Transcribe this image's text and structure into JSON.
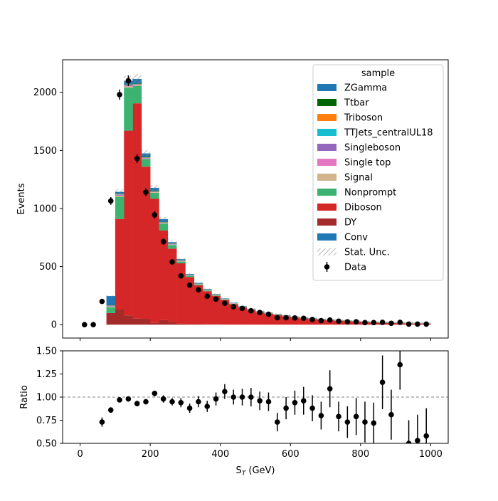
{
  "chart_data": [
    {
      "type": "bar",
      "stacked": true,
      "ylabel": "Events",
      "xlim": [
        -50,
        1050
      ],
      "ylim": [
        -115,
        2280
      ],
      "yticks": [
        0,
        500,
        1000,
        1500,
        2000
      ],
      "bin_edges": [
        0,
        25,
        50,
        75,
        100,
        125,
        150,
        175,
        200,
        225,
        250,
        275,
        300,
        325,
        350,
        375,
        400,
        425,
        450,
        475,
        500,
        525,
        550,
        575,
        600,
        625,
        650,
        675,
        700,
        725,
        750,
        775,
        800,
        825,
        850,
        875,
        900,
        925,
        950,
        975,
        1000
      ],
      "legend": {
        "title": "sample",
        "position": "top-right"
      },
      "series": [
        {
          "name": "DY",
          "color": "#a52a2a",
          "values": [
            0,
            0,
            0,
            100,
            130,
            80,
            55,
            50,
            15,
            40,
            25,
            8,
            5,
            4,
            3,
            3,
            2,
            2,
            2,
            2,
            1,
            1,
            1,
            1,
            1,
            1,
            1,
            1,
            1,
            1,
            1,
            1,
            1,
            1,
            1,
            1,
            1,
            1,
            1,
            1
          ]
        },
        {
          "name": "Diboson",
          "color": "#d62728",
          "values": [
            0,
            0,
            0,
            0,
            780,
            1590,
            1850,
            1310,
            1070,
            770,
            630,
            520,
            405,
            335,
            285,
            245,
            210,
            175,
            148,
            125,
            105,
            93,
            82,
            72,
            60,
            54,
            48,
            42,
            36,
            32,
            28,
            24,
            20,
            17,
            15,
            13,
            11,
            9,
            7,
            6
          ]
        },
        {
          "name": "Nonprompt",
          "color": "#3cb371",
          "values": [
            0,
            0,
            0,
            50,
            190,
            370,
            150,
            65,
            50,
            60,
            30,
            15,
            10,
            8,
            6,
            5,
            4,
            3,
            3,
            2,
            2,
            2,
            2,
            1,
            1,
            1,
            1,
            1,
            1,
            1,
            1,
            1,
            1,
            1,
            1,
            1,
            1,
            1,
            1,
            1
          ]
        },
        {
          "name": "Signal",
          "color": "#d2b48c",
          "values": [
            0,
            0,
            0,
            5,
            10,
            10,
            5,
            5,
            5,
            3,
            3,
            3,
            2,
            2,
            2,
            2,
            2,
            1,
            1,
            1,
            1,
            1,
            1,
            1,
            1,
            1,
            1,
            1,
            1,
            1,
            1,
            1,
            1,
            1,
            1,
            1,
            1,
            1,
            1,
            1
          ]
        },
        {
          "name": "Single top",
          "color": "#e377c2",
          "values": [
            0,
            0,
            0,
            2,
            3,
            3,
            3,
            2,
            2,
            2,
            2,
            1,
            1,
            1,
            1,
            1,
            1,
            1,
            1,
            1,
            1,
            1,
            1,
            1,
            1,
            1,
            1,
            1,
            1,
            1,
            1,
            1,
            1,
            1,
            1,
            1,
            1,
            1,
            1,
            1
          ]
        },
        {
          "name": "Singleboson",
          "color": "#9467bd",
          "values": [
            0,
            0,
            0,
            3,
            5,
            5,
            3,
            3,
            2,
            2,
            2,
            1,
            1,
            1,
            1,
            1,
            1,
            1,
            1,
            1,
            1,
            1,
            1,
            1,
            1,
            1,
            1,
            1,
            1,
            1,
            1,
            1,
            1,
            1,
            1,
            1,
            1,
            1,
            1,
            1
          ]
        },
        {
          "name": "TTJets_centralUL18",
          "color": "#17becf",
          "values": [
            0,
            0,
            0,
            2,
            3,
            3,
            3,
            3,
            3,
            2,
            2,
            2,
            1,
            1,
            1,
            1,
            1,
            1,
            1,
            1,
            1,
            1,
            1,
            1,
            1,
            1,
            1,
            1,
            1,
            1,
            1,
            1,
            1,
            1,
            1,
            1,
            1,
            1,
            1,
            1
          ]
        },
        {
          "name": "Triboson",
          "color": "#ff7f0e",
          "values": [
            0,
            0,
            0,
            2,
            3,
            3,
            3,
            3,
            3,
            2,
            2,
            2,
            1,
            1,
            1,
            1,
            1,
            1,
            1,
            1,
            1,
            1,
            1,
            1,
            1,
            1,
            1,
            1,
            1,
            1,
            1,
            1,
            1,
            1,
            1,
            1,
            1,
            1,
            1,
            1
          ]
        },
        {
          "name": "Ttbar",
          "color": "#006400",
          "values": [
            0,
            0,
            0,
            2,
            3,
            3,
            3,
            3,
            3,
            2,
            2,
            2,
            1,
            1,
            1,
            1,
            1,
            1,
            1,
            1,
            1,
            1,
            1,
            1,
            1,
            1,
            1,
            1,
            1,
            1,
            1,
            1,
            1,
            1,
            1,
            1,
            1,
            1,
            1,
            1
          ]
        },
        {
          "name": "ZGamma",
          "color": "#1f77b4",
          "values": [
            0,
            0,
            0,
            80,
            16,
            32,
            40,
            30,
            25,
            26,
            12,
            10,
            8,
            6,
            5,
            4,
            3,
            3,
            2,
            2,
            2,
            1,
            1,
            1,
            1,
            1,
            1,
            1,
            1,
            1,
            1,
            1,
            1,
            1,
            1,
            1,
            1,
            1,
            1,
            1
          ]
        },
        {
          "name": "Conv",
          "color": "#1f77b4",
          "values": [
            0,
            0,
            0,
            0,
            0,
            0,
            0,
            0,
            0,
            0,
            0,
            0,
            0,
            0,
            0,
            0,
            0,
            0,
            0,
            0,
            0,
            0,
            0,
            0,
            0,
            0,
            0,
            0,
            0,
            0,
            0,
            0,
            0,
            0,
            0,
            0,
            0,
            0,
            0,
            0
          ]
        }
      ],
      "stat_unc": {
        "name": "Stat. Unc.",
        "rel": 0.02
      },
      "data": {
        "name": "Data",
        "x": [
          12.5,
          37.5,
          62.5,
          87.5,
          112.5,
          137.5,
          162.5,
          187.5,
          212.5,
          237.5,
          262.5,
          287.5,
          312.5,
          337.5,
          362.5,
          387.5,
          412.5,
          437.5,
          462.5,
          487.5,
          512.5,
          537.5,
          562.5,
          587.5,
          612.5,
          637.5,
          662.5,
          687.5,
          712.5,
          737.5,
          762.5,
          787.5,
          812.5,
          837.5,
          862.5,
          887.5,
          912.5,
          937.5,
          962.5,
          987.5
        ],
        "y": [
          0,
          0,
          200,
          1065,
          1980,
          2100,
          1430,
          1140,
          945,
          715,
          540,
          420,
          340,
          300,
          245,
          220,
          185,
          155,
          140,
          120,
          105,
          90,
          60,
          60,
          58,
          55,
          45,
          35,
          40,
          30,
          25,
          25,
          18,
          18,
          20,
          12,
          20,
          5,
          5,
          5
        ],
        "err": [
          0,
          0,
          14,
          33,
          44,
          46,
          38,
          34,
          31,
          27,
          23,
          20,
          18,
          17,
          16,
          15,
          14,
          12,
          12,
          11,
          10,
          9,
          8,
          8,
          8,
          7,
          7,
          6,
          6,
          5,
          5,
          5,
          4,
          4,
          4,
          3,
          4,
          2,
          2,
          2
        ]
      }
    },
    {
      "type": "scatter",
      "xlabel": "S_T (GeV)",
      "ylabel": "Ratio",
      "xlim": [
        -50,
        1050
      ],
      "ylim": [
        0.5,
        1.5
      ],
      "xticks": [
        0,
        200,
        400,
        600,
        800,
        1000
      ],
      "yticks": [
        0.5,
        0.75,
        1.0,
        1.25,
        1.5
      ],
      "reference_line": 1.0,
      "points": {
        "x": [
          62.5,
          87.5,
          112.5,
          137.5,
          162.5,
          187.5,
          212.5,
          237.5,
          262.5,
          287.5,
          312.5,
          337.5,
          362.5,
          387.5,
          412.5,
          437.5,
          462.5,
          487.5,
          512.5,
          537.5,
          562.5,
          587.5,
          612.5,
          637.5,
          662.5,
          687.5,
          712.5,
          737.5,
          762.5,
          787.5,
          812.5,
          837.5,
          862.5,
          887.5,
          912.5,
          937.5,
          962.5,
          987.5
        ],
        "y": [
          0.73,
          0.86,
          0.97,
          0.98,
          0.93,
          0.95,
          1.04,
          0.98,
          0.95,
          0.94,
          0.88,
          0.95,
          0.9,
          0.98,
          1.06,
          1.0,
          1.0,
          1.0,
          0.96,
          0.95,
          0.73,
          0.88,
          0.94,
          0.96,
          0.88,
          0.8,
          1.09,
          0.79,
          0.73,
          0.79,
          0.73,
          0.72,
          1.16,
          0.81,
          1.35,
          0.5,
          0.53,
          0.58
        ],
        "err": [
          0.05,
          0.03,
          0.02,
          0.02,
          0.03,
          0.03,
          0.03,
          0.04,
          0.04,
          0.05,
          0.05,
          0.06,
          0.06,
          0.07,
          0.08,
          0.08,
          0.09,
          0.1,
          0.1,
          0.1,
          0.1,
          0.12,
          0.13,
          0.15,
          0.14,
          0.15,
          0.2,
          0.16,
          0.17,
          0.2,
          0.22,
          0.22,
          0.29,
          0.27,
          0.27,
          0.25,
          0.28,
          0.3
        ]
      }
    }
  ]
}
